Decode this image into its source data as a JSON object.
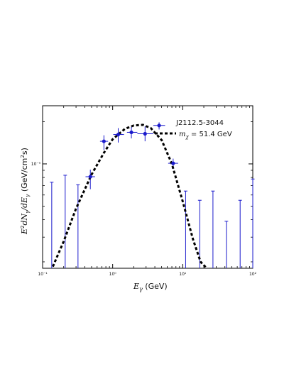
{
  "chart_data": {
    "type": "scatter",
    "source_label": "J2112.5-3044",
    "legend_label": "$m_\\chi = 51.4$ GeV",
    "legend_placement": "top-right",
    "xlabel": "E_γ (GeV)",
    "ylabel": "E²dN_γ/dE_γ (GeV/cm²s)",
    "x_scale": "log",
    "y_scale": "log",
    "xlim": [
      0.1,
      100
    ],
    "ylim": [
      1.8e-10,
      2.6e-09
    ],
    "x_ticks": [
      {
        "value": 0.1,
        "label": "10⁻¹"
      },
      {
        "value": 1,
        "label": "10⁰"
      },
      {
        "value": 10,
        "label": "10¹"
      },
      {
        "value": 100,
        "label": "10²"
      }
    ],
    "y_ticks": [
      {
        "value": 1e-09,
        "label": "10⁻⁹"
      }
    ],
    "grid": false,
    "colors": {
      "points": "#1a1acc",
      "curve": "#000000"
    },
    "points": [
      {
        "x": 0.48,
        "y": 8.1e-10,
        "x_lo": 0.41,
        "x_hi": 0.56,
        "y_lo": 6.6e-10,
        "y_hi": 9.1e-10
      },
      {
        "x": 0.75,
        "y": 1.45e-09,
        "x_lo": 0.66,
        "x_hi": 0.86,
        "y_lo": 1.26e-09,
        "y_hi": 1.6e-09
      },
      {
        "x": 1.2,
        "y": 1.62e-09,
        "x_lo": 1.02,
        "x_hi": 1.45,
        "y_lo": 1.42e-09,
        "y_hi": 1.8e-09
      },
      {
        "x": 1.85,
        "y": 1.68e-09,
        "x_lo": 1.6,
        "x_hi": 2.25,
        "y_lo": 1.52e-09,
        "y_hi": 1.84e-09
      },
      {
        "x": 2.9,
        "y": 1.64e-09,
        "x_lo": 2.25,
        "x_hi": 3.8,
        "y_lo": 1.45e-09,
        "y_hi": 1.85e-09
      },
      {
        "x": 4.6,
        "y": 1.88e-09,
        "x_lo": 3.8,
        "x_hi": 5.6,
        "y_lo": 1.76e-09,
        "y_hi": 1.98e-09
      },
      {
        "x": 7.3,
        "y": 1.01e-09,
        "x_lo": 6.2,
        "x_hi": 8.6,
        "y_lo": 9.2e-10,
        "y_hi": 1.09e-09
      }
    ],
    "upper_limits": [
      {
        "x": 0.135,
        "y": 7.4e-10
      },
      {
        "x": 0.21,
        "y": 8.3e-10
      },
      {
        "x": 0.32,
        "y": 7.1e-10
      },
      {
        "x": 11,
        "y": 6.4e-10
      },
      {
        "x": 17.5,
        "y": 5.5e-10
      },
      {
        "x": 27,
        "y": 6.4e-10
      },
      {
        "x": 42,
        "y": 3.9e-10
      },
      {
        "x": 66,
        "y": 5.5e-10
      },
      {
        "x": 100,
        "y": 7.8e-10
      }
    ],
    "model_curve": {
      "x": [
        0.14,
        0.2,
        0.3,
        0.5,
        0.75,
        1.0,
        1.5,
        2.0,
        2.7,
        3.5,
        5.0,
        7.0,
        10.0,
        14.0,
        18.0,
        22.0
      ],
      "y": [
        1.85e-10,
        2.8e-10,
        4.8e-10,
        8.4e-10,
        1.2e-09,
        1.5e-09,
        1.78e-09,
        1.88e-09,
        1.9e-09,
        1.8e-09,
        1.48e-09,
        1e-09,
        5.4e-10,
        2.9e-10,
        2e-10,
        1.8e-10
      ]
    }
  }
}
